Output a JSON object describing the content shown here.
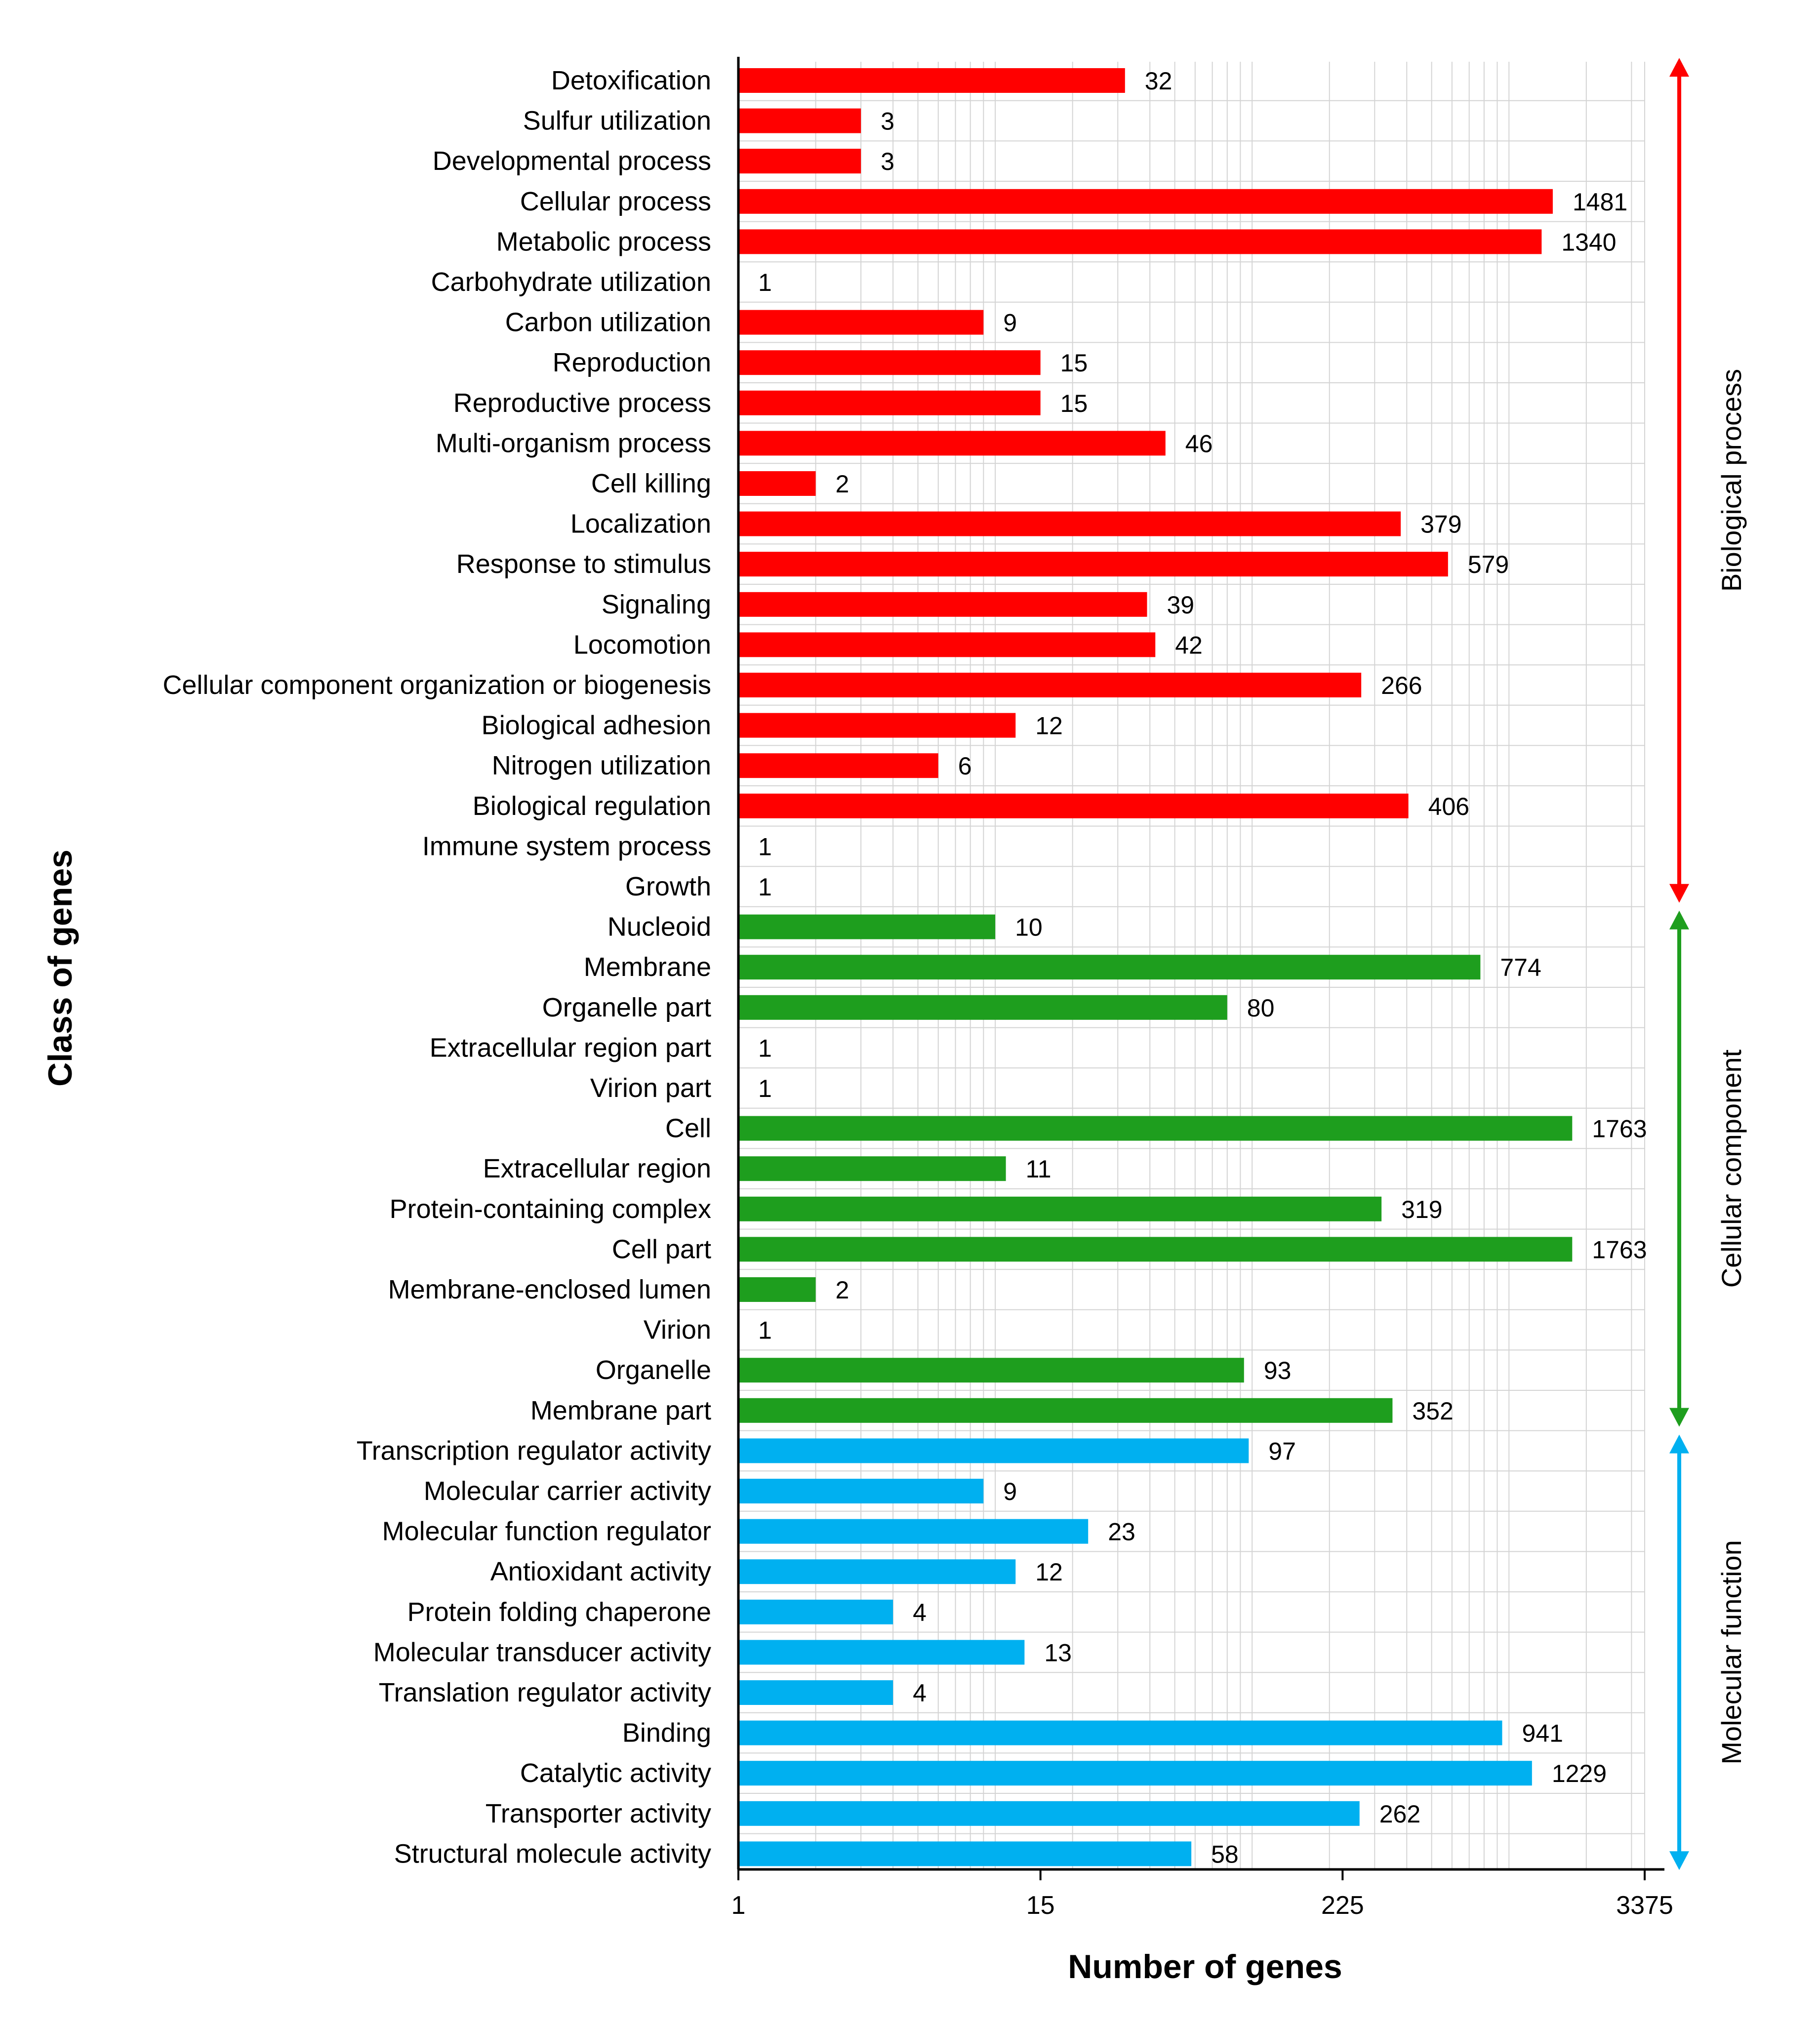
{
  "chart_data": {
    "type": "bar",
    "orientation": "horizontal",
    "x_scale": "log",
    "xlabel": "Number of genes",
    "ylabel": "Class of genes",
    "xlim": [
      1,
      3375
    ],
    "x_ticks": [
      "1",
      "15",
      "225",
      "3375"
    ],
    "grid": true,
    "colors": {
      "Biological process": "#ff0000",
      "Cellular component": "#1e9e1e",
      "Molecular function": "#00b0f0"
    },
    "groups": [
      {
        "name": "Biological process",
        "categories": [
          "Detoxification",
          "Sulfur utilization",
          "Developmental process",
          "Cellular process",
          "Metabolic process",
          "Carbohydrate utilization",
          "Carbon utilization",
          "Reproduction",
          "Reproductive process",
          "Multi-organism process",
          "Cell killing",
          "Localization",
          "Response to stimulus",
          "Signaling",
          "Locomotion",
          "Cellular component organization or biogenesis",
          "Biological adhesion",
          "Nitrogen utilization",
          "Biological regulation",
          "Immune system process",
          "Growth"
        ],
        "values": [
          32,
          3,
          3,
          1481,
          1340,
          1,
          9,
          15,
          15,
          46,
          2,
          379,
          579,
          39,
          42,
          266,
          12,
          6,
          406,
          1,
          1
        ]
      },
      {
        "name": "Cellular component",
        "categories": [
          "Nucleoid",
          "Membrane",
          "Organelle part",
          "Extracellular region part",
          "Virion part",
          "Cell",
          "Extracellular region",
          "Protein-containing complex",
          "Cell part",
          "Membrane-enclosed lumen",
          "Virion",
          "Organelle",
          "Membrane part"
        ],
        "values": [
          10,
          774,
          80,
          1,
          1,
          1763,
          11,
          319,
          1763,
          2,
          1,
          93,
          352
        ]
      },
      {
        "name": "Molecular function",
        "categories": [
          "Transcription regulator activity",
          "Molecular carrier activity",
          "Molecular function regulator",
          "Antioxidant activity",
          "Protein folding chaperone",
          "Molecular transducer activity",
          "Translation regulator activity",
          "Binding",
          "Catalytic activity",
          "Transporter activity",
          "Structural molecule activity"
        ],
        "values": [
          97,
          9,
          23,
          12,
          4,
          13,
          4,
          941,
          1229,
          262,
          58
        ]
      }
    ]
  }
}
